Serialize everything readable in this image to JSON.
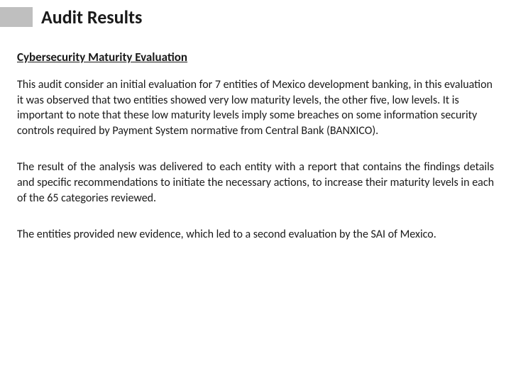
{
  "header": {
    "title": "Audit Results"
  },
  "section": {
    "heading": "Cybersecurity Maturity Evaluation",
    "paragraphs": [
      "This audit consider an initial evaluation for 7 entities of Mexico development banking, in this evaluation it was observed that two entities showed very low maturity levels, the other five, low levels. It is important to note that these low maturity levels imply some breaches on some information security controls  required by Payment System normative from Central Bank (BANXICO).",
      "The result of the analysis was delivered to each entity with a report that contains the findings details and specific recommendations to initiate the necessary actions, to increase their maturity levels in each of the 65 categories reviewed.",
      "The entities provided new evidence, which led to a second evaluation by the SAI of Mexico."
    ]
  },
  "styling": {
    "background_color": "#ffffff",
    "title_font_size": 26,
    "title_font_weight": 700,
    "title_color": "#1a1a1a",
    "heading_font_size": 17,
    "heading_font_weight": 700,
    "heading_color": "#1a1a1a",
    "heading_underline": true,
    "body_font_size": 16,
    "body_color": "#1a1a1a",
    "body_line_height": 1.35,
    "grey_block_color": "#bfbfbf",
    "grey_block_width": 46,
    "grey_block_height": 28,
    "paragraph_alignments": [
      "left",
      "justify",
      "justify"
    ]
  }
}
